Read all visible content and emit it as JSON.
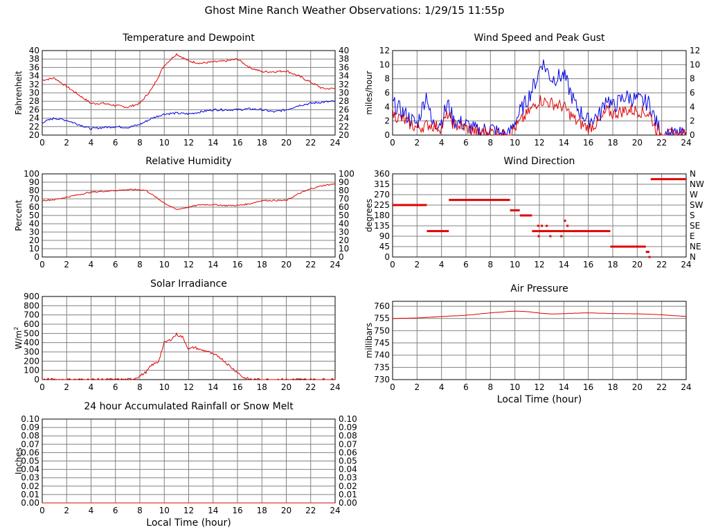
{
  "page": {
    "title": "Ghost Mine Ranch Weather Observations: 1/29/15 11:55p"
  },
  "colors": {
    "grid": "#808080",
    "red": "#e00000",
    "blue": "#0000e0",
    "text": "#000000"
  },
  "chart_data": [
    {
      "id": "temp",
      "type": "line",
      "title": "Temperature and Dewpoint",
      "ylabel": "Fahrenheit",
      "xlabel": "",
      "xlim": [
        0,
        24
      ],
      "xticks": [
        0,
        2,
        4,
        6,
        8,
        10,
        12,
        14,
        16,
        18,
        20,
        22,
        24
      ],
      "ylim": [
        20,
        40
      ],
      "yticks": [
        20,
        22,
        24,
        26,
        28,
        30,
        32,
        34,
        36,
        38,
        40
      ],
      "right_ticks": [
        20,
        22,
        24,
        26,
        28,
        30,
        32,
        34,
        36,
        38,
        40
      ],
      "series": [
        {
          "color": "red",
          "noise": 0.25,
          "points": [
            [
              0,
              33
            ],
            [
              1,
              33.5
            ],
            [
              2,
              31.5
            ],
            [
              3,
              29.5
            ],
            [
              4,
              27.5
            ],
            [
              5,
              27.5
            ],
            [
              6,
              27
            ],
            [
              7,
              26.6
            ],
            [
              8,
              27.5
            ],
            [
              9,
              31
            ],
            [
              10,
              36.5
            ],
            [
              11,
              39.2
            ],
            [
              12,
              37.5
            ],
            [
              13,
              37
            ],
            [
              14,
              37.3
            ],
            [
              15,
              37.5
            ],
            [
              16,
              38
            ],
            [
              17,
              36
            ],
            [
              18,
              35
            ],
            [
              19,
              35
            ],
            [
              20,
              35.2
            ],
            [
              21,
              34
            ],
            [
              22,
              32.5
            ],
            [
              23,
              31
            ],
            [
              24,
              31
            ]
          ]
        },
        {
          "color": "blue",
          "noise": 0.25,
          "points": [
            [
              0,
              23
            ],
            [
              1,
              24
            ],
            [
              2,
              23.5
            ],
            [
              3,
              22.5
            ],
            [
              4,
              21.5
            ],
            [
              5,
              21.8
            ],
            [
              6,
              22
            ],
            [
              7,
              21.8
            ],
            [
              8,
              22.5
            ],
            [
              9,
              24
            ],
            [
              10,
              25
            ],
            [
              11,
              25.2
            ],
            [
              12,
              25
            ],
            [
              13,
              25.5
            ],
            [
              14,
              26
            ],
            [
              15,
              26
            ],
            [
              16,
              26
            ],
            [
              17,
              26.2
            ],
            [
              18,
              26
            ],
            [
              19,
              25.5
            ],
            [
              20,
              26
            ],
            [
              21,
              27
            ],
            [
              22,
              27.5
            ],
            [
              23,
              27.8
            ],
            [
              24,
              28
            ]
          ]
        }
      ]
    },
    {
      "id": "wind",
      "type": "line",
      "title": "Wind Speed and Peak Gust",
      "ylabel": "miles/hour",
      "xlabel": "",
      "xlim": [
        0,
        24
      ],
      "xticks": [
        0,
        2,
        4,
        6,
        8,
        10,
        12,
        14,
        16,
        18,
        20,
        22,
        24
      ],
      "ylim": [
        0,
        12
      ],
      "yticks": [
        0,
        2,
        4,
        6,
        8,
        10,
        12
      ],
      "right_ticks": [
        0,
        2,
        4,
        6,
        8,
        10,
        12
      ],
      "series": [
        {
          "color": "blue",
          "noise": 1.2,
          "points": [
            [
              0,
              4.5
            ],
            [
              1,
              3
            ],
            [
              2,
              1.5
            ],
            [
              2.8,
              6
            ],
            [
              3.2,
              1.5
            ],
            [
              4,
              2
            ],
            [
              4.5,
              4.5
            ],
            [
              5,
              2
            ],
            [
              6,
              1.5
            ],
            [
              7,
              0.5
            ],
            [
              8,
              1
            ],
            [
              9,
              0
            ],
            [
              9.5,
              0
            ],
            [
              10,
              2
            ],
            [
              11,
              5
            ],
            [
              11.8,
              8
            ],
            [
              12.2,
              10.5
            ],
            [
              13,
              8
            ],
            [
              14,
              8.5
            ],
            [
              15,
              4
            ],
            [
              16,
              2
            ],
            [
              17,
              3
            ],
            [
              17.5,
              5.5
            ],
            [
              18,
              4
            ],
            [
              19,
              5.5
            ],
            [
              20,
              5
            ],
            [
              21,
              4.5
            ],
            [
              21.5,
              2
            ],
            [
              22,
              0
            ],
            [
              24,
              0
            ]
          ]
        },
        {
          "color": "red",
          "noise": 0.9,
          "points": [
            [
              0,
              3
            ],
            [
              1,
              2
            ],
            [
              2,
              1
            ],
            [
              3,
              1.5
            ],
            [
              4,
              1
            ],
            [
              4.5,
              3
            ],
            [
              5,
              1.5
            ],
            [
              6,
              1
            ],
            [
              7,
              0.3
            ],
            [
              8,
              0.5
            ],
            [
              9,
              0
            ],
            [
              9.5,
              0
            ],
            [
              10,
              1
            ],
            [
              11,
              3
            ],
            [
              12,
              5
            ],
            [
              13,
              4.5
            ],
            [
              14,
              4
            ],
            [
              15,
              2
            ],
            [
              16,
              1
            ],
            [
              17,
              2
            ],
            [
              17.5,
              3.5
            ],
            [
              18,
              3
            ],
            [
              19,
              3.5
            ],
            [
              20,
              3.5
            ],
            [
              21,
              3
            ],
            [
              21.5,
              1
            ],
            [
              22,
              0
            ],
            [
              24,
              0
            ]
          ]
        }
      ]
    },
    {
      "id": "humidity",
      "type": "line",
      "title": "Relative Humidity",
      "ylabel": "Percent",
      "xlabel": "",
      "xlim": [
        0,
        24
      ],
      "xticks": [
        0,
        2,
        4,
        6,
        8,
        10,
        12,
        14,
        16,
        18,
        20,
        22,
        24
      ],
      "ylim": [
        0,
        100
      ],
      "yticks": [
        0,
        10,
        20,
        30,
        40,
        50,
        60,
        70,
        80,
        90,
        100
      ],
      "right_ticks": [
        0,
        10,
        20,
        30,
        40,
        50,
        60,
        70,
        80,
        90,
        100
      ],
      "series": [
        {
          "color": "red",
          "noise": 0.8,
          "points": [
            [
              0,
              68
            ],
            [
              1,
              69
            ],
            [
              2,
              72
            ],
            [
              3,
              75
            ],
            [
              4,
              78
            ],
            [
              5,
              79
            ],
            [
              6,
              80
            ],
            [
              7,
              81
            ],
            [
              8,
              81
            ],
            [
              8.5,
              80
            ],
            [
              9,
              75
            ],
            [
              10,
              65
            ],
            [
              11,
              57
            ],
            [
              12,
              60
            ],
            [
              13,
              63
            ],
            [
              14,
              63
            ],
            [
              15,
              62
            ],
            [
              16,
              62
            ],
            [
              17,
              64
            ],
            [
              18,
              68
            ],
            [
              19,
              68
            ],
            [
              20,
              68
            ],
            [
              21,
              76
            ],
            [
              22,
              82
            ],
            [
              23,
              86
            ],
            [
              24,
              88
            ]
          ]
        }
      ]
    },
    {
      "id": "direction",
      "type": "scatter",
      "title": "Wind Direction",
      "ylabel": "degrees",
      "xlabel": "",
      "xlim": [
        0,
        24
      ],
      "xticks": [
        0,
        2,
        4,
        6,
        8,
        10,
        12,
        14,
        16,
        18,
        20,
        22,
        24
      ],
      "ylim": [
        0,
        360
      ],
      "yticks": [
        0,
        45,
        90,
        135,
        180,
        225,
        270,
        315,
        360
      ],
      "right_ticks": [
        "N",
        "NE",
        "E",
        "SE",
        "S",
        "SW",
        "W",
        "NW",
        "N"
      ],
      "segments": [
        [
          0,
          2.8,
          225
        ],
        [
          2.8,
          4.6,
          112
        ],
        [
          4.6,
          9.6,
          247
        ],
        [
          9.6,
          10.4,
          202
        ],
        [
          10.4,
          11.4,
          180
        ],
        [
          11.4,
          11.9,
          112
        ],
        [
          11.9,
          17.8,
          112
        ],
        [
          17.8,
          20.7,
          45
        ],
        [
          20.7,
          21.0,
          22
        ],
        [
          21.1,
          24,
          337
        ]
      ],
      "dots": [
        [
          11.9,
          135
        ],
        [
          12.2,
          135
        ],
        [
          12.6,
          135
        ],
        [
          11.95,
          90
        ],
        [
          12.9,
          90
        ],
        [
          13.8,
          90
        ],
        [
          14.1,
          157
        ],
        [
          14.3,
          135
        ],
        [
          21.0,
          0
        ]
      ]
    },
    {
      "id": "solar",
      "type": "line",
      "title": "Solar Irradiance",
      "ylabel": "W/m2",
      "xlabel": "",
      "xlim": [
        0,
        24
      ],
      "xticks": [
        0,
        2,
        4,
        6,
        8,
        10,
        12,
        14,
        16,
        18,
        20,
        22,
        24
      ],
      "ylim": [
        0,
        900
      ],
      "yticks": [
        0,
        100,
        200,
        300,
        400,
        500,
        600,
        700,
        800,
        900
      ],
      "right_ticks": [],
      "series": [
        {
          "color": "red",
          "noise": 14,
          "points": [
            [
              0,
              0
            ],
            [
              7,
              0
            ],
            [
              7.5,
              10
            ],
            [
              8,
              40
            ],
            [
              8.5,
              80
            ],
            [
              9,
              160
            ],
            [
              9.5,
              190
            ],
            [
              10,
              400
            ],
            [
              10.5,
              430
            ],
            [
              11,
              490
            ],
            [
              11.5,
              460
            ],
            [
              12,
              330
            ],
            [
              12.5,
              350
            ],
            [
              13,
              320
            ],
            [
              13.5,
              310
            ],
            [
              14,
              270
            ],
            [
              14.5,
              250
            ],
            [
              15,
              190
            ],
            [
              15.5,
              130
            ],
            [
              16,
              80
            ],
            [
              16.5,
              20
            ],
            [
              17,
              5
            ],
            [
              17.5,
              0
            ],
            [
              24,
              0
            ]
          ]
        }
      ]
    },
    {
      "id": "pressure",
      "type": "line",
      "title": "Air Pressure",
      "ylabel": "millibars",
      "xlabel": "Local Time (hour)",
      "xlim": [
        0,
        24
      ],
      "xticks": [
        0,
        2,
        4,
        6,
        8,
        10,
        12,
        14,
        16,
        18,
        20,
        22,
        24
      ],
      "ylim": [
        730,
        762
      ],
      "yticks": [
        730,
        735,
        740,
        745,
        750,
        755,
        760
      ],
      "right_ticks": [],
      "series": [
        {
          "color": "red",
          "noise": 0.05,
          "points": [
            [
              0,
              755
            ],
            [
              2,
              755.2
            ],
            [
              4,
              755.8
            ],
            [
              6,
              756.3
            ],
            [
              8,
              757.3
            ],
            [
              10,
              758
            ],
            [
              11,
              757.8
            ],
            [
              12,
              757.2
            ],
            [
              13,
              756.8
            ],
            [
              14,
              757
            ],
            [
              16,
              757.3
            ],
            [
              18,
              757
            ],
            [
              20,
              756.9
            ],
            [
              22,
              756.5
            ],
            [
              24,
              755.8
            ]
          ]
        }
      ]
    },
    {
      "id": "rain",
      "type": "line",
      "title": "24 hour Accumulated Rainfall or Snow Melt",
      "ylabel": "Inches",
      "xlabel": "Local Time (hour)",
      "xlim": [
        0,
        24
      ],
      "xticks": [
        0,
        2,
        4,
        6,
        8,
        10,
        12,
        14,
        16,
        18,
        20,
        22,
        24
      ],
      "ylim": [
        0,
        0.1
      ],
      "yticks": [
        "0.00",
        "0.01",
        "0.02",
        "0.03",
        "0.04",
        "0.05",
        "0.06",
        "0.07",
        "0.08",
        "0.09",
        "0.10"
      ],
      "right_ticks": [
        "0.00",
        "0.01",
        "0.02",
        "0.03",
        "0.04",
        "0.05",
        "0.06",
        "0.07",
        "0.08",
        "0.09",
        "0.10"
      ],
      "series": [
        {
          "color": "red",
          "noise": 0,
          "points": [
            [
              0,
              0
            ],
            [
              24,
              0
            ]
          ]
        }
      ]
    }
  ]
}
